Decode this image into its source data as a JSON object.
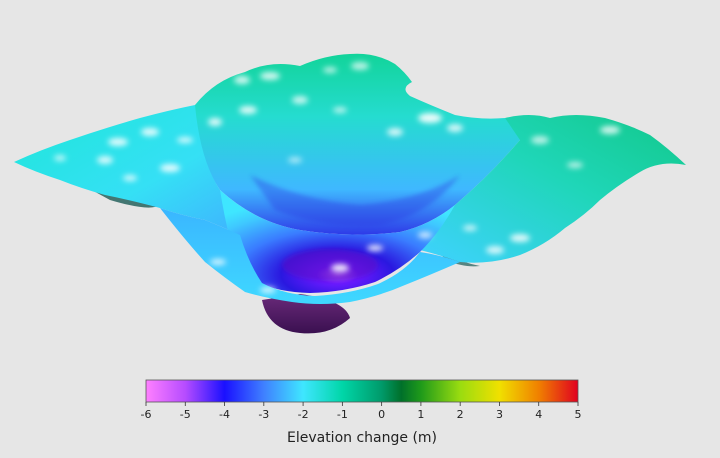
{
  "chart_data": {
    "type": "heatmap",
    "title": "",
    "description_axis": "3D surface colored by elevation change",
    "colorbar": {
      "label": "Elevation change (m)",
      "min": -6,
      "max": 5,
      "ticks": [
        -6,
        -5,
        -4,
        -3,
        -2,
        -1,
        0,
        1,
        2,
        3,
        4,
        5
      ],
      "colors": [
        {
          "value": -6,
          "color": "#ff80ff"
        },
        {
          "value": -5,
          "color": "#b64cff"
        },
        {
          "value": -4,
          "color": "#1a10ff"
        },
        {
          "value": -3,
          "color": "#3f80ff"
        },
        {
          "value": -2,
          "color": "#3fe6ff"
        },
        {
          "value": -1,
          "color": "#00d6a8"
        },
        {
          "value": 0,
          "color": "#009a6a"
        },
        {
          "value": 0.5,
          "color": "#00702a"
        },
        {
          "value": 1,
          "color": "#1f9a1a"
        },
        {
          "value": 2,
          "color": "#9adc10"
        },
        {
          "value": 3,
          "color": "#f0e000"
        },
        {
          "value": 4,
          "color": "#f08000"
        },
        {
          "value": 5,
          "color": "#e00020"
        }
      ]
    },
    "surface": {
      "min_elevation_change": -6,
      "rim_elevation_change": -1,
      "colors": {
        "deep": "#5a1a6e",
        "low": "#2a18e0",
        "mid": "#3a7cff",
        "rim": "#3fe6ff",
        "edge_high": "#12d49a"
      }
    }
  }
}
